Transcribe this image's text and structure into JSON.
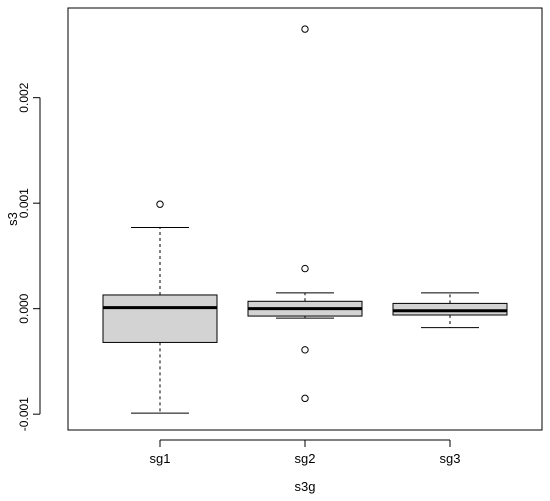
{
  "chart_data": {
    "type": "box",
    "title": "",
    "xlabel": "s3g",
    "ylabel": "s3",
    "categories": [
      "sg1",
      "sg2",
      "sg3"
    ],
    "ylim": [
      -0.00115,
      0.00285
    ],
    "yticks": [
      -0.001,
      0.0,
      0.001,
      0.002
    ],
    "ytick_labels": [
      "-0.001",
      "0.000",
      "0.001",
      "0.002"
    ],
    "box_fill": "#d3d3d3",
    "grid": false,
    "legend": "none",
    "boxes": [
      {
        "category": "sg1",
        "whisker_low": -0.00099,
        "q1": -0.00032,
        "median": 1e-05,
        "q3": 0.00013,
        "whisker_high": 0.00077,
        "outliers": [
          0.00099
        ]
      },
      {
        "category": "sg2",
        "whisker_low": -9e-05,
        "q1": -7e-05,
        "median": 0.0,
        "q3": 7e-05,
        "whisker_high": 0.00015,
        "outliers": [
          0.00265,
          0.00038,
          -0.00039,
          -0.00085
        ]
      },
      {
        "category": "sg3",
        "whisker_low": -0.00018,
        "q1": -6e-05,
        "median": -2e-05,
        "q3": 5e-05,
        "whisker_high": 0.00015,
        "outliers": []
      }
    ]
  }
}
